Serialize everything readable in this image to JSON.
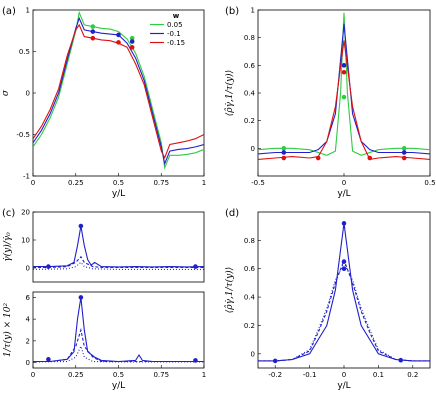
{
  "chart_data": [
    {
      "id": "a",
      "panel_label": "(a)",
      "type": "line",
      "xlabel": "y/L",
      "ylabel": "σ",
      "xlim": [
        0,
        1
      ],
      "ylim": [
        -1,
        1
      ],
      "xticks": [
        "0",
        "0.25",
        "0.5",
        "0.75",
        "1"
      ],
      "yticks": [
        "-1",
        "-0.5",
        "0",
        "0.5",
        "1"
      ],
      "legend": {
        "title": "w",
        "position": "top-right",
        "entries": [
          "0.05",
          "-0.1",
          "-0.15"
        ]
      },
      "series": [
        {
          "name": "0.05",
          "color": "#2ecc40",
          "x": [
            0,
            0.05,
            0.1,
            0.15,
            0.2,
            0.25,
            0.27,
            0.3,
            0.35,
            0.4,
            0.45,
            0.5,
            0.55,
            0.6,
            0.65,
            0.7,
            0.75,
            0.77,
            0.8,
            0.85,
            0.9,
            0.95,
            1.0
          ],
          "y": [
            -0.65,
            -0.5,
            -0.3,
            -0.05,
            0.35,
            0.75,
            0.97,
            0.82,
            0.8,
            0.78,
            0.77,
            0.74,
            0.65,
            0.48,
            0.2,
            -0.2,
            -0.6,
            -0.9,
            -0.75,
            -0.75,
            -0.74,
            -0.72,
            -0.68
          ],
          "markers": [
            {
              "x": 0.35,
              "y": 0.8
            },
            {
              "x": 0.58,
              "y": 0.66
            }
          ]
        },
        {
          "name": "-0.1",
          "color": "#2020cc",
          "x": [
            0,
            0.05,
            0.1,
            0.15,
            0.2,
            0.25,
            0.27,
            0.3,
            0.35,
            0.4,
            0.45,
            0.5,
            0.55,
            0.6,
            0.65,
            0.7,
            0.75,
            0.77,
            0.8,
            0.85,
            0.9,
            0.95,
            1.0
          ],
          "y": [
            -0.6,
            -0.45,
            -0.25,
            0.0,
            0.4,
            0.78,
            0.9,
            0.76,
            0.74,
            0.72,
            0.71,
            0.7,
            0.6,
            0.42,
            0.15,
            -0.25,
            -0.65,
            -0.85,
            -0.7,
            -0.68,
            -0.67,
            -0.65,
            -0.62
          ],
          "markers": [
            {
              "x": 0.35,
              "y": 0.74
            },
            {
              "x": 0.5,
              "y": 0.7
            },
            {
              "x": 0.58,
              "y": 0.62
            }
          ]
        },
        {
          "name": "-0.15",
          "color": "#dd1111",
          "x": [
            0,
            0.05,
            0.1,
            0.15,
            0.2,
            0.25,
            0.27,
            0.3,
            0.35,
            0.4,
            0.45,
            0.5,
            0.55,
            0.6,
            0.65,
            0.7,
            0.75,
            0.77,
            0.8,
            0.85,
            0.9,
            0.95,
            1.0
          ],
          "y": [
            -0.55,
            -0.4,
            -0.2,
            0.05,
            0.45,
            0.76,
            0.82,
            0.68,
            0.66,
            0.64,
            0.63,
            0.6,
            0.55,
            0.35,
            0.1,
            -0.3,
            -0.7,
            -0.78,
            -0.62,
            -0.6,
            -0.58,
            -0.55,
            -0.5
          ],
          "markers": [
            {
              "x": 0.35,
              "y": 0.66
            },
            {
              "x": 0.5,
              "y": 0.61
            },
            {
              "x": 0.58,
              "y": 0.55
            }
          ]
        }
      ]
    },
    {
      "id": "b",
      "panel_label": "(b)",
      "type": "line",
      "xlabel": "y/L",
      "ylabel": "⟨ρ̂γ̇,1/τ(y)⟩",
      "xlim": [
        -0.5,
        0.5
      ],
      "ylim": [
        -0.2,
        1.0
      ],
      "xticks": [
        "-0.5",
        "0",
        "0.5"
      ],
      "yticks": [
        "0",
        "0.2",
        "0.4",
        "0.6",
        "0.8",
        "1"
      ],
      "series": [
        {
          "name": "0.05",
          "color": "#2ecc40",
          "x": [
            -0.5,
            -0.4,
            -0.3,
            -0.2,
            -0.1,
            -0.05,
            -0.02,
            0,
            0.02,
            0.05,
            0.1,
            0.2,
            0.3,
            0.4,
            0.5
          ],
          "y": [
            -0.01,
            0.0,
            0.0,
            -0.01,
            -0.05,
            -0.02,
            0.4,
            0.98,
            0.4,
            -0.02,
            -0.05,
            -0.01,
            0.0,
            0.0,
            -0.01
          ],
          "markers": [
            {
              "x": -0.35,
              "y": 0.0
            },
            {
              "x": 0.0,
              "y": 0.37
            },
            {
              "x": 0.35,
              "y": 0.0
            }
          ]
        },
        {
          "name": "-0.1",
          "color": "#2020cc",
          "x": [
            -0.5,
            -0.4,
            -0.3,
            -0.2,
            -0.15,
            -0.1,
            -0.05,
            0,
            0.05,
            0.1,
            0.15,
            0.2,
            0.3,
            0.4,
            0.5
          ],
          "y": [
            -0.04,
            -0.03,
            -0.03,
            -0.03,
            -0.01,
            0.05,
            0.25,
            0.9,
            0.25,
            0.05,
            -0.01,
            -0.03,
            -0.03,
            -0.03,
            -0.04
          ],
          "markers": [
            {
              "x": -0.35,
              "y": -0.03
            },
            {
              "x": 0.0,
              "y": 0.6
            },
            {
              "x": 0.35,
              "y": -0.03
            }
          ]
        },
        {
          "name": "-0.15",
          "color": "#dd1111",
          "x": [
            -0.5,
            -0.4,
            -0.3,
            -0.2,
            -0.15,
            -0.1,
            -0.05,
            0,
            0.05,
            0.1,
            0.15,
            0.2,
            0.3,
            0.4,
            0.5
          ],
          "y": [
            -0.08,
            -0.07,
            -0.06,
            -0.07,
            -0.06,
            0.05,
            0.3,
            0.78,
            0.3,
            0.05,
            -0.08,
            -0.07,
            -0.06,
            -0.07,
            -0.08
          ],
          "markers": [
            {
              "x": -0.35,
              "y": -0.07
            },
            {
              "x": -0.15,
              "y": -0.07
            },
            {
              "x": 0.0,
              "y": 0.55
            },
            {
              "x": 0.15,
              "y": -0.07
            },
            {
              "x": 0.35,
              "y": -0.07
            }
          ]
        }
      ]
    },
    {
      "id": "c_top",
      "panel_label": "(c)",
      "type": "line",
      "xlabel": "",
      "ylabel": "γ̇(y)/γ̇₀",
      "xlim": [
        0,
        1
      ],
      "ylim": [
        -5,
        20
      ],
      "xticks": [],
      "yticks": [
        "0",
        "10",
        "20"
      ],
      "series": [
        {
          "name": "solid",
          "color": "#2020cc",
          "dash": "",
          "x": [
            0,
            0.1,
            0.2,
            0.24,
            0.26,
            0.28,
            0.3,
            0.32,
            0.34,
            0.36,
            0.4,
            0.5,
            0.6,
            0.7,
            0.8,
            0.9,
            1.0
          ],
          "y": [
            0.5,
            0.5,
            0.8,
            2,
            8,
            15,
            8,
            3,
            1,
            2,
            0.5,
            0.4,
            0.5,
            0.4,
            0.5,
            0.4,
            0.5
          ],
          "markers": [
            {
              "x": 0.28,
              "y": 15
            },
            {
              "x": 0.09,
              "y": 0.5
            },
            {
              "x": 0.95,
              "y": 0.5
            }
          ]
        },
        {
          "name": "dashed",
          "color": "#2020cc",
          "dash": "3,2",
          "x": [
            0,
            0.1,
            0.2,
            0.25,
            0.28,
            0.3,
            0.35,
            0.4,
            0.6,
            0.8,
            1.0
          ],
          "y": [
            0.2,
            0.2,
            0.5,
            2,
            4,
            2,
            0.5,
            0.2,
            0.2,
            0.2,
            0.2
          ],
          "markers": []
        },
        {
          "name": "dotted",
          "color": "#2020cc",
          "dash": "1,2",
          "x": [
            0,
            0.2,
            0.25,
            0.28,
            0.3,
            0.35,
            0.5,
            1.0
          ],
          "y": [
            -0.5,
            -0.3,
            0.5,
            2,
            0.5,
            -0.3,
            -0.5,
            -0.5
          ],
          "markers": []
        }
      ]
    },
    {
      "id": "c_bottom",
      "panel_label": "",
      "type": "line",
      "xlabel": "y/L",
      "ylabel": "1/τ(y) × 10²",
      "xlim": [
        0,
        1
      ],
      "ylim": [
        -0.5,
        6.5
      ],
      "xticks": [
        "0",
        "0.25",
        "0.5",
        "0.75",
        "1"
      ],
      "yticks": [
        "0",
        "2",
        "4",
        "6"
      ],
      "series": [
        {
          "name": "solid",
          "color": "#2020cc",
          "dash": "",
          "x": [
            0,
            0.1,
            0.2,
            0.24,
            0.26,
            0.28,
            0.3,
            0.32,
            0.36,
            0.4,
            0.5,
            0.6,
            0.62,
            0.64,
            0.7,
            0.8,
            0.9,
            1.0
          ],
          "y": [
            0.1,
            0.1,
            0.3,
            1,
            4,
            6,
            3,
            1,
            0.5,
            0.2,
            0.1,
            0.2,
            0.7,
            0.2,
            0.1,
            0.1,
            0.1,
            0.1
          ],
          "markers": [
            {
              "x": 0.28,
              "y": 6
            },
            {
              "x": 0.09,
              "y": 0.3
            },
            {
              "x": 0.95,
              "y": 0.2
            }
          ]
        },
        {
          "name": "dashed",
          "color": "#2020cc",
          "dash": "3,2",
          "x": [
            0,
            0.1,
            0.2,
            0.25,
            0.28,
            0.3,
            0.35,
            0.4,
            0.6,
            0.8,
            1.0
          ],
          "y": [
            0.1,
            0.1,
            0.3,
            1.5,
            3,
            1.5,
            0.5,
            0.1,
            0.1,
            0.1,
            0.1
          ],
          "markers": []
        },
        {
          "name": "dotted",
          "color": "#2020cc",
          "dash": "1,2",
          "x": [
            0,
            0.2,
            0.25,
            0.28,
            0.3,
            0.35,
            0.5,
            1.0
          ],
          "y": [
            0.05,
            0.1,
            0.5,
            1.5,
            0.5,
            0.1,
            0.05,
            0.05
          ],
          "markers": []
        }
      ]
    },
    {
      "id": "d",
      "panel_label": "(d)",
      "type": "line",
      "xlabel": "y/L",
      "ylabel": "⟨ρ̂γ̇,1/τ(y)⟩",
      "xlim": [
        -0.25,
        0.25
      ],
      "ylim": [
        -0.1,
        1.0
      ],
      "xticks": [
        "-0.2",
        "-0.1",
        "0",
        "0.1",
        "0.2"
      ],
      "yticks": [
        "0",
        "0.2",
        "0.4",
        "0.6",
        "0.8"
      ],
      "series": [
        {
          "name": "solid",
          "color": "#2020cc",
          "dash": "",
          "x": [
            -0.25,
            -0.2,
            -0.15,
            -0.1,
            -0.075,
            -0.05,
            -0.025,
            0,
            0.025,
            0.05,
            0.075,
            0.1,
            0.15,
            0.2,
            0.25
          ],
          "y": [
            -0.05,
            -0.05,
            -0.04,
            0.0,
            0.1,
            0.2,
            0.45,
            0.92,
            0.45,
            0.2,
            0.1,
            0.0,
            -0.04,
            -0.05,
            -0.05
          ],
          "markers": [
            {
              "x": -0.2,
              "y": -0.05
            },
            {
              "x": 0.0,
              "y": 0.92
            },
            {
              "x": 0.165,
              "y": -0.045
            }
          ]
        },
        {
          "name": "dashed",
          "color": "#2020cc",
          "dash": "3,2",
          "x": [
            -0.25,
            -0.2,
            -0.15,
            -0.1,
            -0.075,
            -0.05,
            -0.025,
            0,
            0.025,
            0.05,
            0.075,
            0.1,
            0.15,
            0.2,
            0.25
          ],
          "y": [
            -0.05,
            -0.05,
            -0.04,
            0.02,
            0.15,
            0.3,
            0.5,
            0.66,
            0.5,
            0.3,
            0.15,
            0.02,
            -0.04,
            -0.05,
            -0.05
          ],
          "markers": [
            {
              "x": 0.0,
              "y": 0.65
            }
          ]
        },
        {
          "name": "dotted",
          "color": "#2020cc",
          "dash": "1,2",
          "x": [
            -0.25,
            -0.2,
            -0.15,
            -0.1,
            -0.075,
            -0.05,
            -0.025,
            0,
            0.025,
            0.05,
            0.075,
            0.1,
            0.15,
            0.2,
            0.25
          ],
          "y": [
            -0.05,
            -0.05,
            -0.04,
            0.03,
            0.17,
            0.32,
            0.52,
            0.64,
            0.52,
            0.32,
            0.17,
            0.03,
            -0.04,
            -0.05,
            -0.05
          ],
          "markers": [
            {
              "x": 0.0,
              "y": 0.6
            }
          ]
        }
      ]
    }
  ]
}
